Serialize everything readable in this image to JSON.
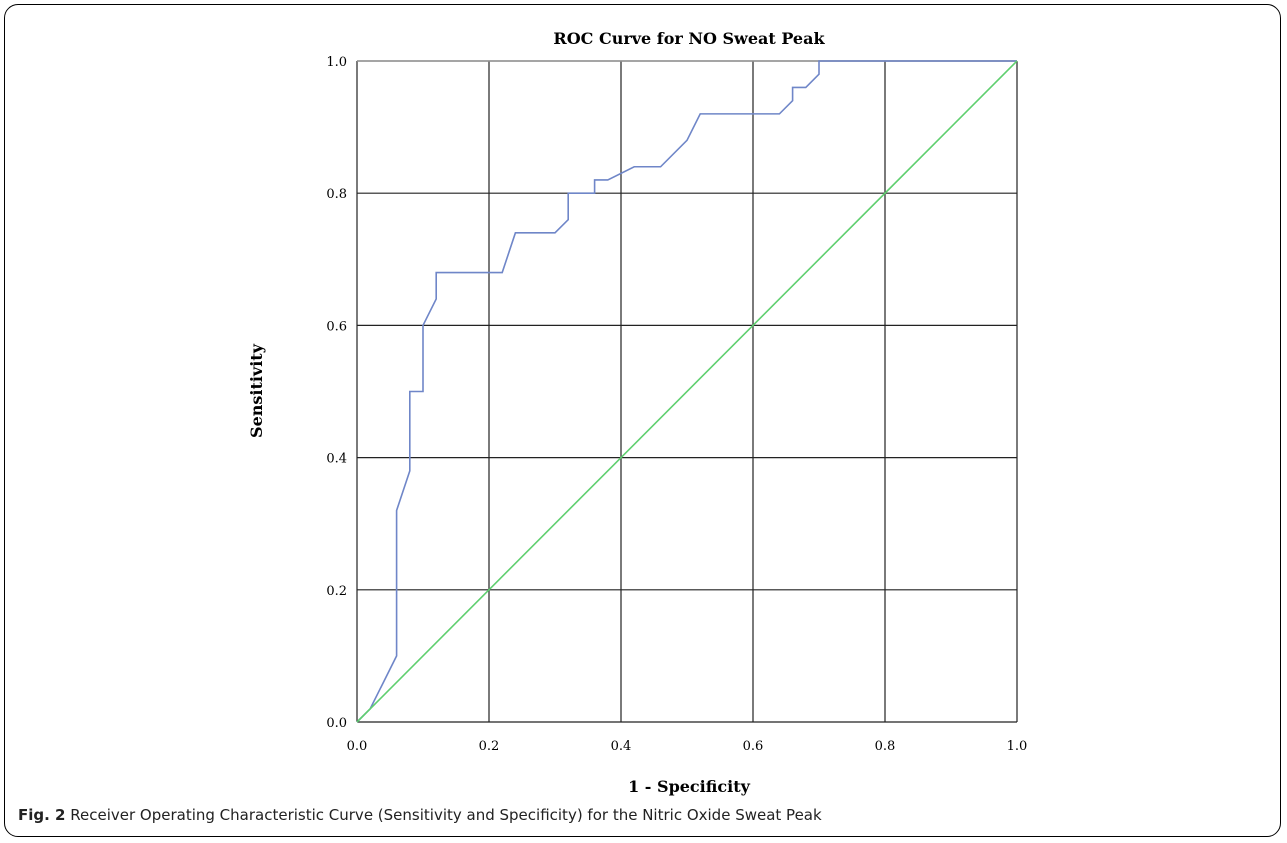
{
  "chart_data": {
    "type": "line",
    "title": "ROC Curve for NO Sweat Peak",
    "xlabel": "1 - Specificity",
    "ylabel": "Sensitivity",
    "xlim": [
      0.0,
      1.0
    ],
    "ylim": [
      0.0,
      1.0
    ],
    "xticks": [
      "0.0",
      "0.2",
      "0.4",
      "0.6",
      "0.8",
      "1.0"
    ],
    "yticks": [
      "0.0",
      "0.2",
      "0.4",
      "0.6",
      "0.8",
      "1.0"
    ],
    "grid": true,
    "series": [
      {
        "color": "#6f86c8",
        "x": [
          0.0,
          0.02,
          0.06,
          0.06,
          0.08,
          0.08,
          0.1,
          0.1,
          0.12,
          0.12,
          0.22,
          0.24,
          0.3,
          0.32,
          0.32,
          0.36,
          0.36,
          0.38,
          0.42,
          0.46,
          0.5,
          0.52,
          0.64,
          0.66,
          0.66,
          0.68,
          0.7,
          0.7,
          1.0
        ],
        "y": [
          0.0,
          0.02,
          0.1,
          0.32,
          0.38,
          0.5,
          0.5,
          0.6,
          0.64,
          0.68,
          0.68,
          0.74,
          0.74,
          0.76,
          0.8,
          0.8,
          0.82,
          0.82,
          0.84,
          0.84,
          0.88,
          0.92,
          0.92,
          0.94,
          0.96,
          0.96,
          0.98,
          1.0,
          1.0
        ]
      },
      {
        "color": "#5fcf6f",
        "x": [
          0.0,
          1.0
        ],
        "y": [
          0.0,
          1.0
        ]
      }
    ]
  },
  "caption": {
    "label": "Fig. 2",
    "text": "Receiver Operating Characteristic Curve (Sensitivity and Specificity) for the Nitric Oxide Sweat Peak"
  }
}
